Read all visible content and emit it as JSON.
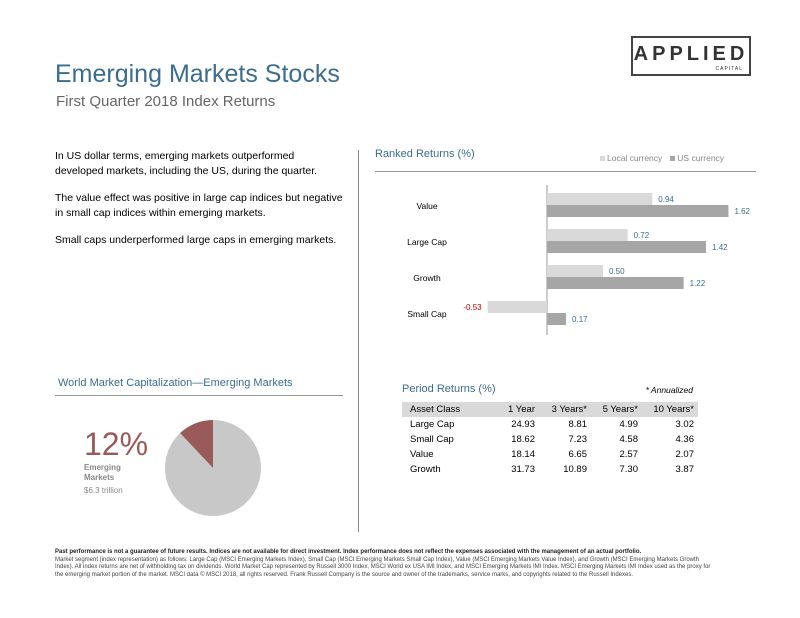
{
  "header": {
    "title": "Emerging Markets Stocks",
    "subtitle": "First Quarter 2018 Index Returns"
  },
  "logo": {
    "main": "APPLIED",
    "sub": "CAPITAL"
  },
  "bullets": [
    "In US dollar terms, emerging markets outperformed developed markets, including the US, during the quarter.",
    "The value effect was positive in large cap indices but negative in small cap indices within emerging markets.",
    "Small caps underperformed large caps in emerging markets."
  ],
  "ranked_returns": {
    "title": "Ranked Returns (%)",
    "legend": {
      "local": "Local currency",
      "us": "US currency"
    }
  },
  "chart_data": {
    "type": "bar",
    "orientation": "horizontal",
    "title": "Ranked Returns (%)",
    "categories": [
      "Value",
      "Large Cap",
      "Growth",
      "Small Cap"
    ],
    "series": [
      {
        "name": "Local currency",
        "color": "#d9d9d9",
        "values": [
          0.94,
          0.72,
          0.5,
          -0.53
        ]
      },
      {
        "name": "US currency",
        "color": "#a6a6a6",
        "values": [
          1.62,
          1.42,
          1.22,
          0.17
        ]
      }
    ],
    "value_labels": {
      "local": [
        "0.94",
        "0.72",
        "0.50",
        "-0.53"
      ],
      "us": [
        "1.62",
        "1.42",
        "1.22",
        "0.17"
      ]
    },
    "legend_position": "top-right",
    "grid": false
  },
  "world_market": {
    "title": "World Market Capitalization—Emerging Markets",
    "percent": "12%",
    "label": "Emerging Markets",
    "value": "$6.3 trillion",
    "share": 0.12,
    "colors": {
      "slice": "#9b5a5a",
      "rest": "#c8c8c8"
    }
  },
  "period_returns": {
    "title": "Period Returns (%)",
    "note": "* Annualized",
    "headers": [
      "Asset Class",
      "1 Year",
      "3 Years*",
      "5 Years*",
      "10 Years*"
    ],
    "rows": [
      [
        "Large Cap",
        "24.93",
        "8.81",
        "4.99",
        "3.02"
      ],
      [
        "Small Cap",
        "18.62",
        "7.23",
        "4.58",
        "4.36"
      ],
      [
        "Value",
        "18.14",
        "6.65",
        "2.57",
        "2.07"
      ],
      [
        "Growth",
        "31.73",
        "10.89",
        "7.30",
        "3.87"
      ]
    ]
  },
  "footer": {
    "bold": "Past performance is not a guarantee of future results. Indices are not available for direct investment. Index performance does not reflect the expenses associated with the management of an actual portfolio.",
    "text": "Market segment (index representation) as follows: Large Cap (MSCI Emerging Markets Index), Small Cap (MSCI Emerging Markets Small Cap Index), Value (MSCI Emerging Markets Value Index), and Growth (MSCI Emerging Markets Growth Index). All index returns are net of withholding tax on dividends. World Market Cap represented by Russell 3000 Index, MSCI World ex USA IMI Index, and MSCI Emerging Markets IMI Index. MSCI Emerging Markets IMI Index used as the proxy for the emerging market portion of the market. MSCI data © MSCI 2018, all rights reserved. Frank Russell Company is the source and owner of the trademarks, service marks, and copyrights related to the Russell Indexes."
  }
}
